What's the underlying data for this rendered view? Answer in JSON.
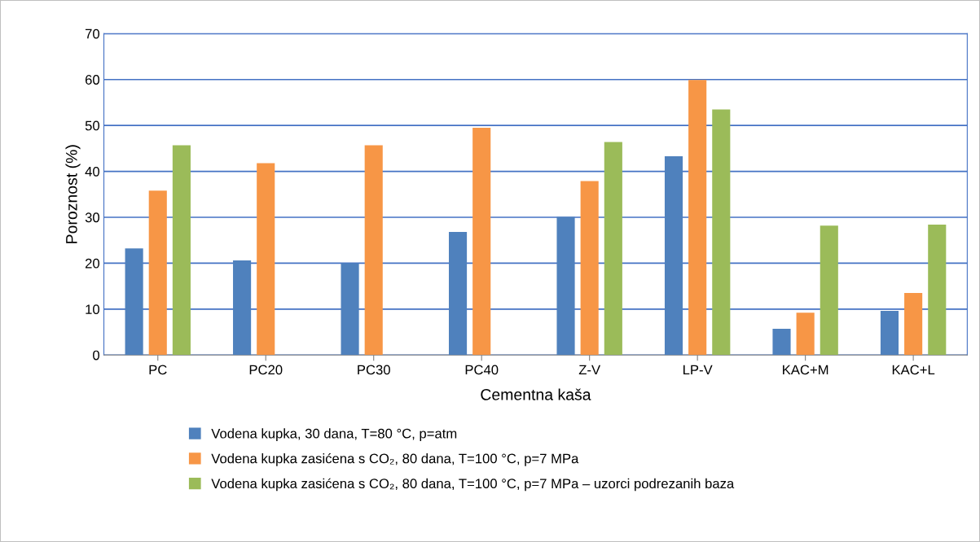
{
  "chart_data": {
    "type": "bar",
    "xlabel": "Cementna kaša",
    "ylabel": "Poroznost (%)",
    "categories": [
      "PC",
      "PC20",
      "PC30",
      "PC40",
      "Z-V",
      "LP-V",
      "KAC+M",
      "KAC+L"
    ],
    "series": [
      {
        "name": "Vodena kupka, 30 dana, T=80 °C, p=atm",
        "color": "#4f81bd",
        "values": [
          23.2,
          20.6,
          20.0,
          26.8,
          30.1,
          43.3,
          5.7,
          9.6
        ]
      },
      {
        "name": "Vodena kupka zasićena s CO₂, 80 dana, T=100 °C, p=7 MPa",
        "color": "#f79646",
        "values": [
          35.8,
          41.8,
          45.7,
          49.5,
          37.9,
          59.9,
          9.2,
          13.5
        ]
      },
      {
        "name": "Vodena kupka zasićena s CO₂, 80 dana, T=100 °C, p=7 MPa – uzorci podrezanih baza",
        "color": "#9bbb59",
        "values": [
          45.7,
          null,
          null,
          null,
          46.4,
          53.5,
          28.2,
          28.4
        ]
      }
    ],
    "ylim": [
      0,
      70
    ],
    "yticks": [
      0,
      10,
      20,
      30,
      40,
      50,
      60,
      70
    ],
    "grid": "y",
    "legend": "bottom"
  }
}
